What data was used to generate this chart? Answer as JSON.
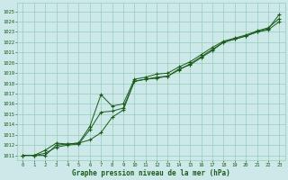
{
  "xlabel": "Graphe pression niveau de la mer (hPa)",
  "xlim": [
    -0.5,
    23.5
  ],
  "ylim": [
    1010.5,
    1025.8
  ],
  "yticks": [
    1011,
    1012,
    1013,
    1014,
    1015,
    1016,
    1017,
    1018,
    1019,
    1020,
    1021,
    1022,
    1023,
    1024,
    1025
  ],
  "xticks": [
    0,
    1,
    2,
    3,
    4,
    5,
    6,
    7,
    8,
    9,
    10,
    11,
    12,
    13,
    14,
    15,
    16,
    17,
    18,
    19,
    20,
    21,
    22,
    23
  ],
  "background_color": "#cce8e8",
  "grid_color": "#99ccbb",
  "line_color": "#1a5c1a",
  "line1": [
    1011.0,
    1011.0,
    1011.2,
    1011.8,
    1012.0,
    1012.1,
    1013.5,
    1015.2,
    1015.3,
    1015.6,
    1018.2,
    1018.4,
    1018.6,
    1018.7,
    1019.4,
    1019.8,
    1020.5,
    1021.2,
    1022.0,
    1022.3,
    1022.6,
    1023.0,
    1023.3,
    1024.7
  ],
  "line2": [
    1011.0,
    1011.0,
    1011.0,
    1012.0,
    1012.1,
    1012.2,
    1012.5,
    1013.2,
    1014.7,
    1015.4,
    1018.2,
    1018.4,
    1018.5,
    1018.7,
    1019.3,
    1019.9,
    1020.6,
    1021.3,
    1022.0,
    1022.3,
    1022.6,
    1023.0,
    1023.2,
    1024.0
  ],
  "line3": [
    1011.0,
    1011.0,
    1011.5,
    1012.2,
    1012.1,
    1012.2,
    1013.8,
    1016.9,
    1015.8,
    1016.0,
    1018.4,
    1018.6,
    1018.9,
    1019.0,
    1019.6,
    1020.1,
    1020.8,
    1021.5,
    1022.1,
    1022.4,
    1022.7,
    1023.1,
    1023.4,
    1024.3
  ]
}
